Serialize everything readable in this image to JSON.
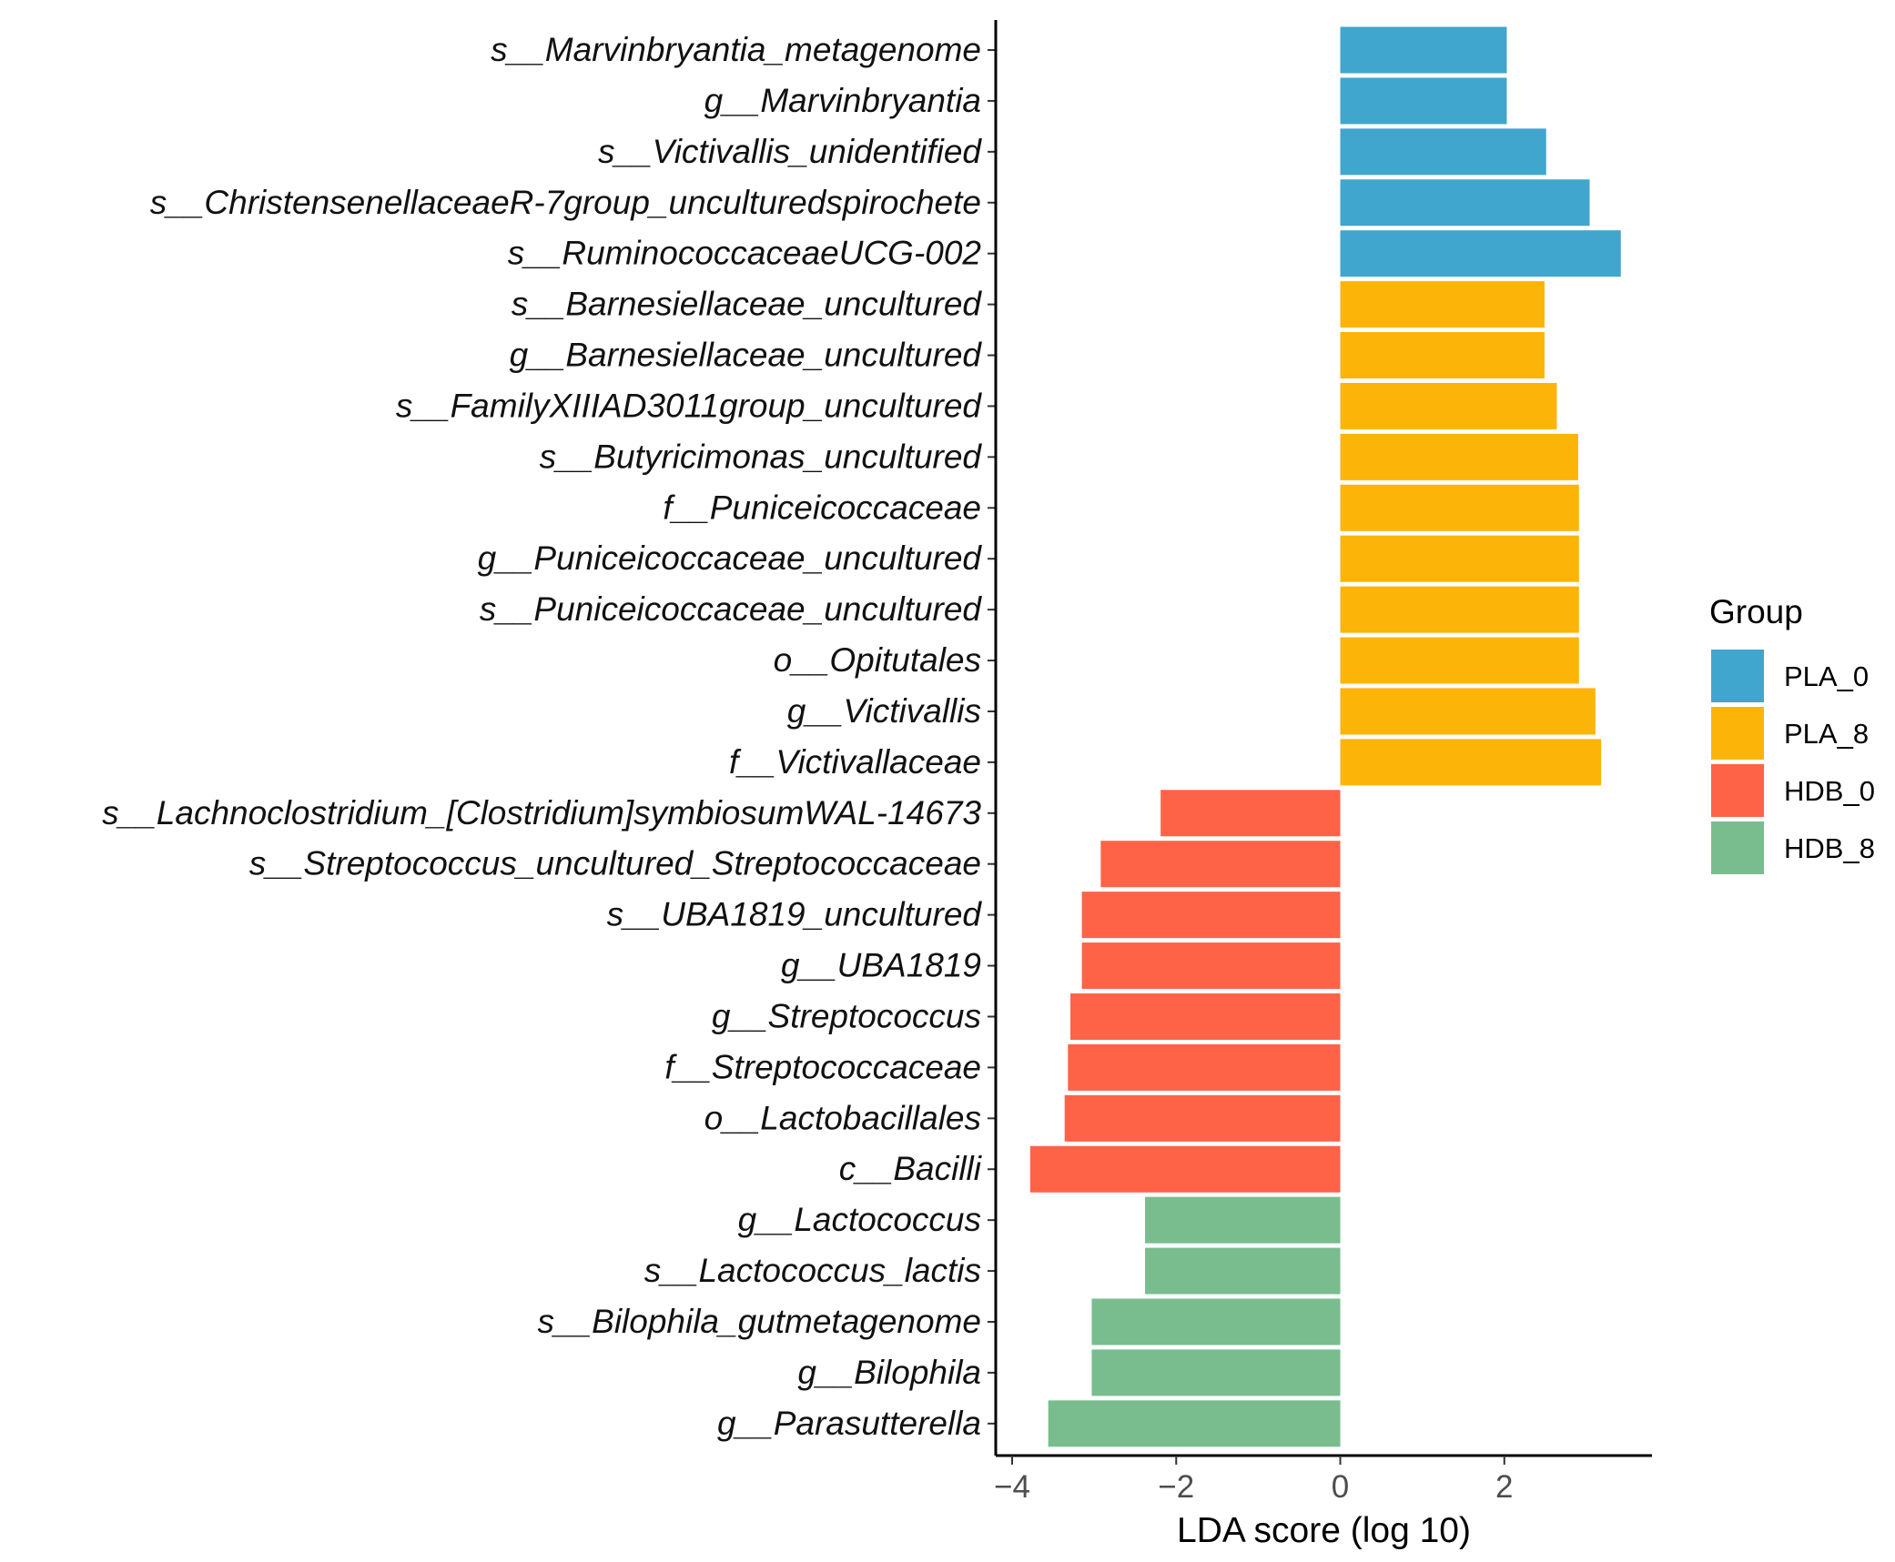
{
  "chart_data": {
    "type": "bar",
    "orientation": "horizontal",
    "xlabel": "LDA score (log 10)",
    "ylabel": "",
    "xlim": [
      -4.2,
      3.8
    ],
    "xticks": [
      -4,
      -2,
      0,
      2
    ],
    "tick_labels": [
      "−4",
      "−2",
      "0",
      "2"
    ],
    "grid": false,
    "legend": {
      "title": "Group",
      "position": "right",
      "entries": [
        {
          "name": "PLA_0",
          "color": "#41A6CD"
        },
        {
          "name": "PLA_8",
          "color": "#FDB408"
        },
        {
          "name": "HDB_0",
          "color": "#FF6347"
        },
        {
          "name": "HDB_8",
          "color": "#79BD8F"
        }
      ]
    },
    "bars": [
      {
        "label": "s__Marvinbryantia_metagenome",
        "value": 2.03,
        "group": "PLA_0"
      },
      {
        "label": "g__Marvinbryantia",
        "value": 2.03,
        "group": "PLA_0"
      },
      {
        "label": "s__Victivallis_unidentified",
        "value": 2.51,
        "group": "PLA_0"
      },
      {
        "label": "s__ChristensenellaceaeR-7group_unculturedspirochete",
        "value": 3.04,
        "group": "PLA_0"
      },
      {
        "label": "s__RuminococcaceaeUCG-002",
        "value": 3.42,
        "group": "PLA_0"
      },
      {
        "label": "s__Barnesiellaceae_uncultured",
        "value": 2.49,
        "group": "PLA_8"
      },
      {
        "label": "g__Barnesiellaceae_uncultured",
        "value": 2.49,
        "group": "PLA_8"
      },
      {
        "label": "s__FamilyXIIIAD3011group_uncultured",
        "value": 2.64,
        "group": "PLA_8"
      },
      {
        "label": "s__Butyricimonas_uncultured",
        "value": 2.9,
        "group": "PLA_8"
      },
      {
        "label": "f__Puniceicoccaceae",
        "value": 2.91,
        "group": "PLA_8"
      },
      {
        "label": "g__Puniceicoccaceae_uncultured",
        "value": 2.91,
        "group": "PLA_8"
      },
      {
        "label": "s__Puniceicoccaceae_uncultured",
        "value": 2.91,
        "group": "PLA_8"
      },
      {
        "label": "o__Opitutales",
        "value": 2.91,
        "group": "PLA_8"
      },
      {
        "label": "g__Victivallis",
        "value": 3.11,
        "group": "PLA_8"
      },
      {
        "label": "f__Victivallaceae",
        "value": 3.18,
        "group": "PLA_8"
      },
      {
        "label": "s__Lachnoclostridium_[Clostridium]symbiosumWAL-14673",
        "value": -2.19,
        "group": "HDB_0"
      },
      {
        "label": "s__Streptococcus_uncultured_Streptococcaceae",
        "value": -2.92,
        "group": "HDB_0"
      },
      {
        "label": "s__UBA1819_uncultured",
        "value": -3.15,
        "group": "HDB_0"
      },
      {
        "label": "g__UBA1819",
        "value": -3.15,
        "group": "HDB_0"
      },
      {
        "label": "g__Streptococcus",
        "value": -3.29,
        "group": "HDB_0"
      },
      {
        "label": "f__Streptococcaceae",
        "value": -3.32,
        "group": "HDB_0"
      },
      {
        "label": "o__Lactobacillales",
        "value": -3.36,
        "group": "HDB_0"
      },
      {
        "label": "c__Bacilli",
        "value": -3.78,
        "group": "HDB_0"
      },
      {
        "label": "g__Lactococcus",
        "value": -2.38,
        "group": "HDB_8"
      },
      {
        "label": "s__Lactococcus_lactis",
        "value": -2.38,
        "group": "HDB_8"
      },
      {
        "label": "s__Bilophila_gutmetagenome",
        "value": -3.03,
        "group": "HDB_8"
      },
      {
        "label": "g__Bilophila",
        "value": -3.03,
        "group": "HDB_8"
      },
      {
        "label": "g__Parasutterella",
        "value": -3.56,
        "group": "HDB_8"
      }
    ]
  }
}
